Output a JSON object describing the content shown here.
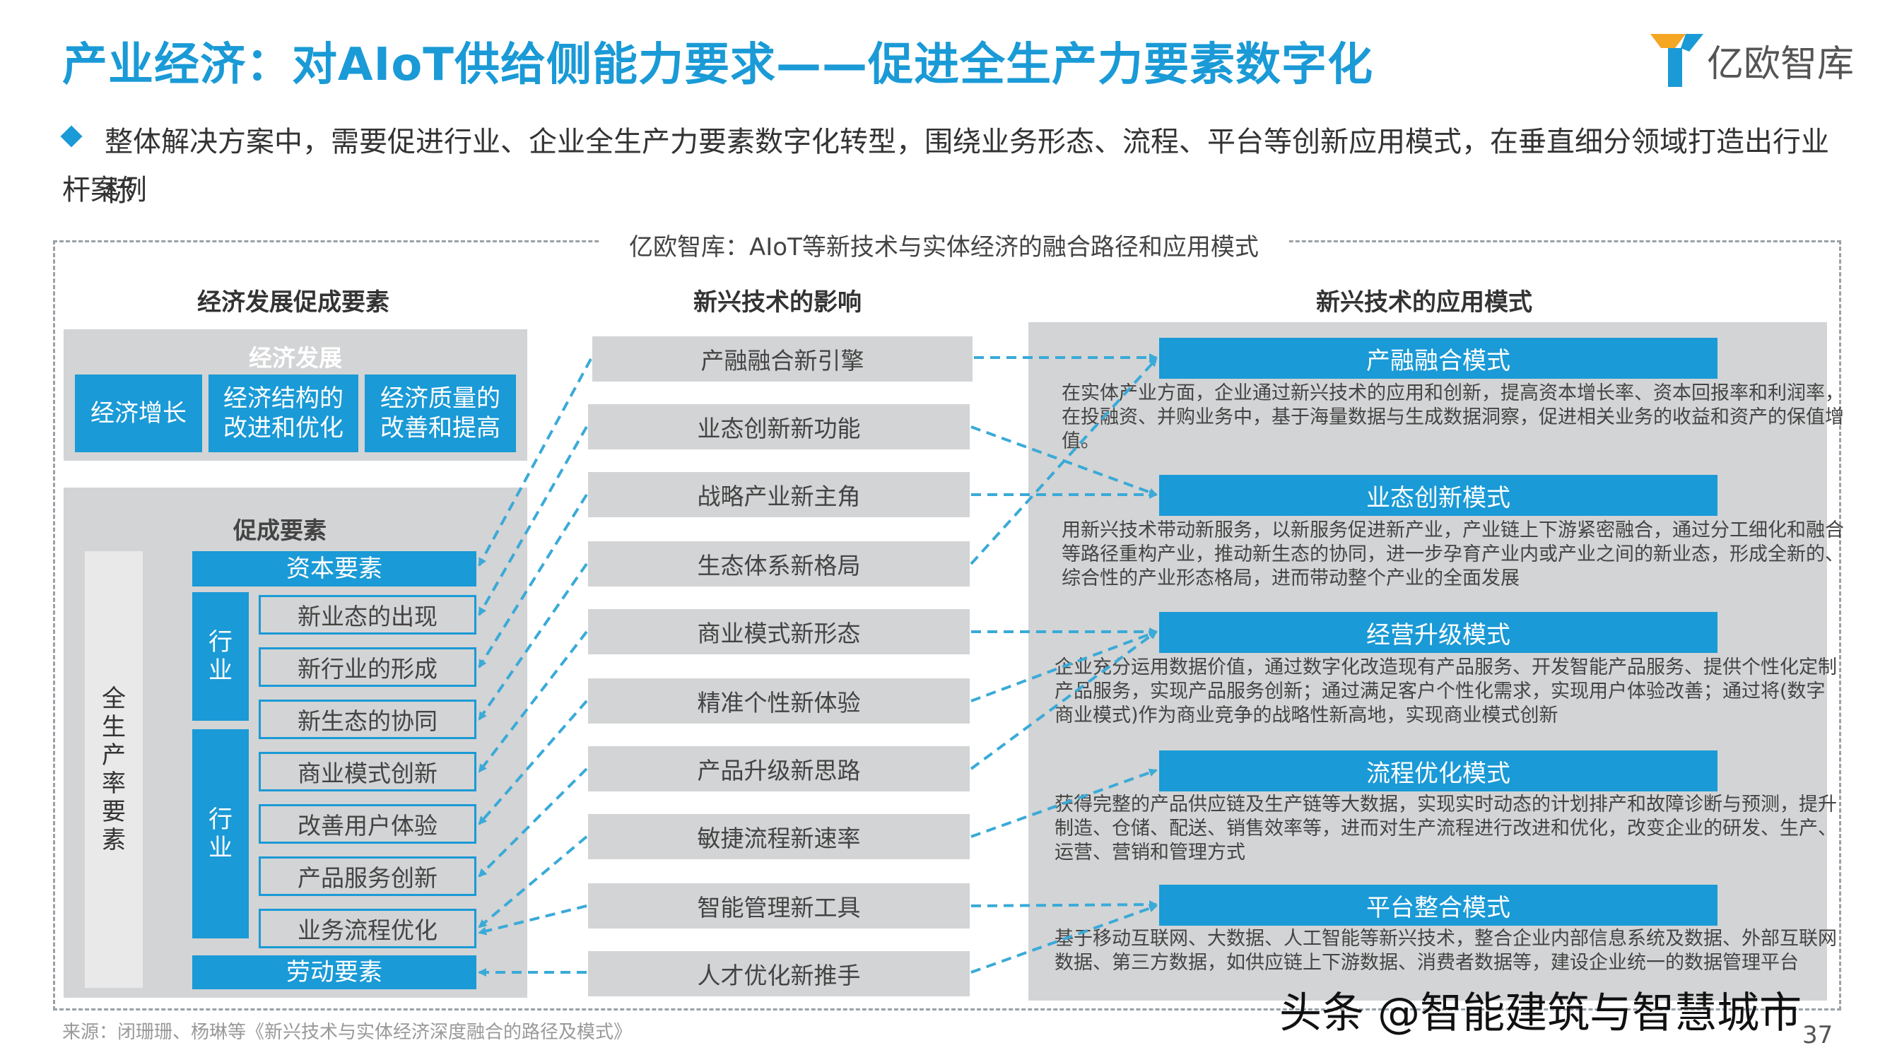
{
  "header": {
    "title": "产业经济：对AIoT供给侧能力要求——促进全生产力要素数字化",
    "brand": "亿欧智库"
  },
  "intro": {
    "line1": "整体解决方案中，需要促进行业、企业全生产力要素数字化转型，围绕业务形态、流程、平台等创新应用模式，在垂直细分领域打造出行业标",
    "line2": "杆案例"
  },
  "diagram": {
    "title": "亿欧智库：AIoT等新技术与实体经济的融合路径和应用模式",
    "col1_head": "经济发展促成要素",
    "col2_head": "新兴技术的影响",
    "col3_head": "新兴技术的应用模式",
    "econ": {
      "label": "经济发展",
      "items": [
        "经济增长",
        "经济结构的改进和优化",
        "经济质量的改善和提高"
      ]
    },
    "factors": {
      "label": "促成要素",
      "side": "全生产率要素",
      "capital": "资本要素",
      "group1": "行业",
      "group1_items": [
        "新业态的出现",
        "新行业的形成",
        "新生态的协同"
      ],
      "group2": "行业",
      "group2_items": [
        "商业模式创新",
        "改善用户体验",
        "产品服务创新",
        "业务流程优化"
      ],
      "labor": "劳动要素"
    },
    "impacts": [
      "产融融合新引擎",
      "业态创新新功能",
      "战略产业新主角",
      "生态体系新格局",
      "商业模式新形态",
      "精准个性新体验",
      "产品升级新思路",
      "敏捷流程新速率",
      "智能管理新工具",
      "人才优化新推手"
    ],
    "modes": [
      {
        "name": "产融融合模式",
        "desc": "在实体产业方面，企业通过新兴技术的应用和创新，提高资本增长率、资本回报率和利润率，在投融资、并购业务中，基于海量数据与生成数据洞察，促进相关业务的收益和资产的保值增值。"
      },
      {
        "name": "业态创新模式",
        "desc": "用新兴技术带动新服务，以新服务促进新产业，产业链上下游紧密融合，通过分工细化和融合等路径重构产业，推动新生态的协同，进一步孕育产业内或产业之间的新业态，形成全新的、综合性的产业形态格局，进而带动整个产业的全面发展"
      },
      {
        "name": "经营升级模式",
        "desc": "企业充分运用数据价值，通过数字化改造现有产品服务、开发智能产品服务、提供个性化定制产品服务，实现产品服务创新；通过满足客户个性化需求，实现用户体验改善；通过将(数字商业模式)作为商业竞争的战略性新高地，实现商业模式创新"
      },
      {
        "name": "流程优化模式",
        "desc": "获得完整的产品供应链及生产链等大数据，实现实时动态的计划排产和故障诊断与预测，提升制造、仓储、配送、销售效率等，进而对生产流程进行改进和优化，改变企业的研发、生产、运营、营销和管理方式"
      },
      {
        "name": "平台整合模式",
        "desc": "基于移动互联网、大数据、人工智能等新兴技术，整合企业内部信息系统及数据、外部互联网数据、第三方数据，如供应链上下游数据、消费者数据等，建设企业统一的数据管理平台"
      }
    ]
  },
  "footer": {
    "source": "来源：闭珊珊、杨琳等《新兴技术与实体经济深度融合的路径及模式》",
    "watermark": "头条 @智能建筑与智慧城市",
    "page": "37"
  },
  "colors": {
    "accent": "#1a9ad6",
    "panel": "#d3d4d5",
    "arrow": "#3aaad8"
  }
}
